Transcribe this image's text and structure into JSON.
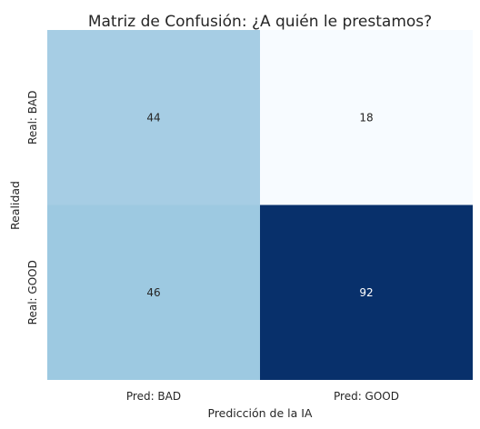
{
  "chart_data": {
    "type": "heatmap",
    "title": "Matriz de Confusión: ¿A quién le prestamos?",
    "xlabel": "Predicción de la IA",
    "ylabel": "Realidad",
    "x_categories": [
      "Pred: BAD",
      "Pred: GOOD"
    ],
    "y_categories": [
      "Real: BAD",
      "Real: GOOD"
    ],
    "values": [
      [
        44,
        18
      ],
      [
        46,
        92
      ]
    ],
    "colormap": "Blues",
    "value_range": [
      18,
      92
    ],
    "colorbar": false,
    "grid": false
  }
}
